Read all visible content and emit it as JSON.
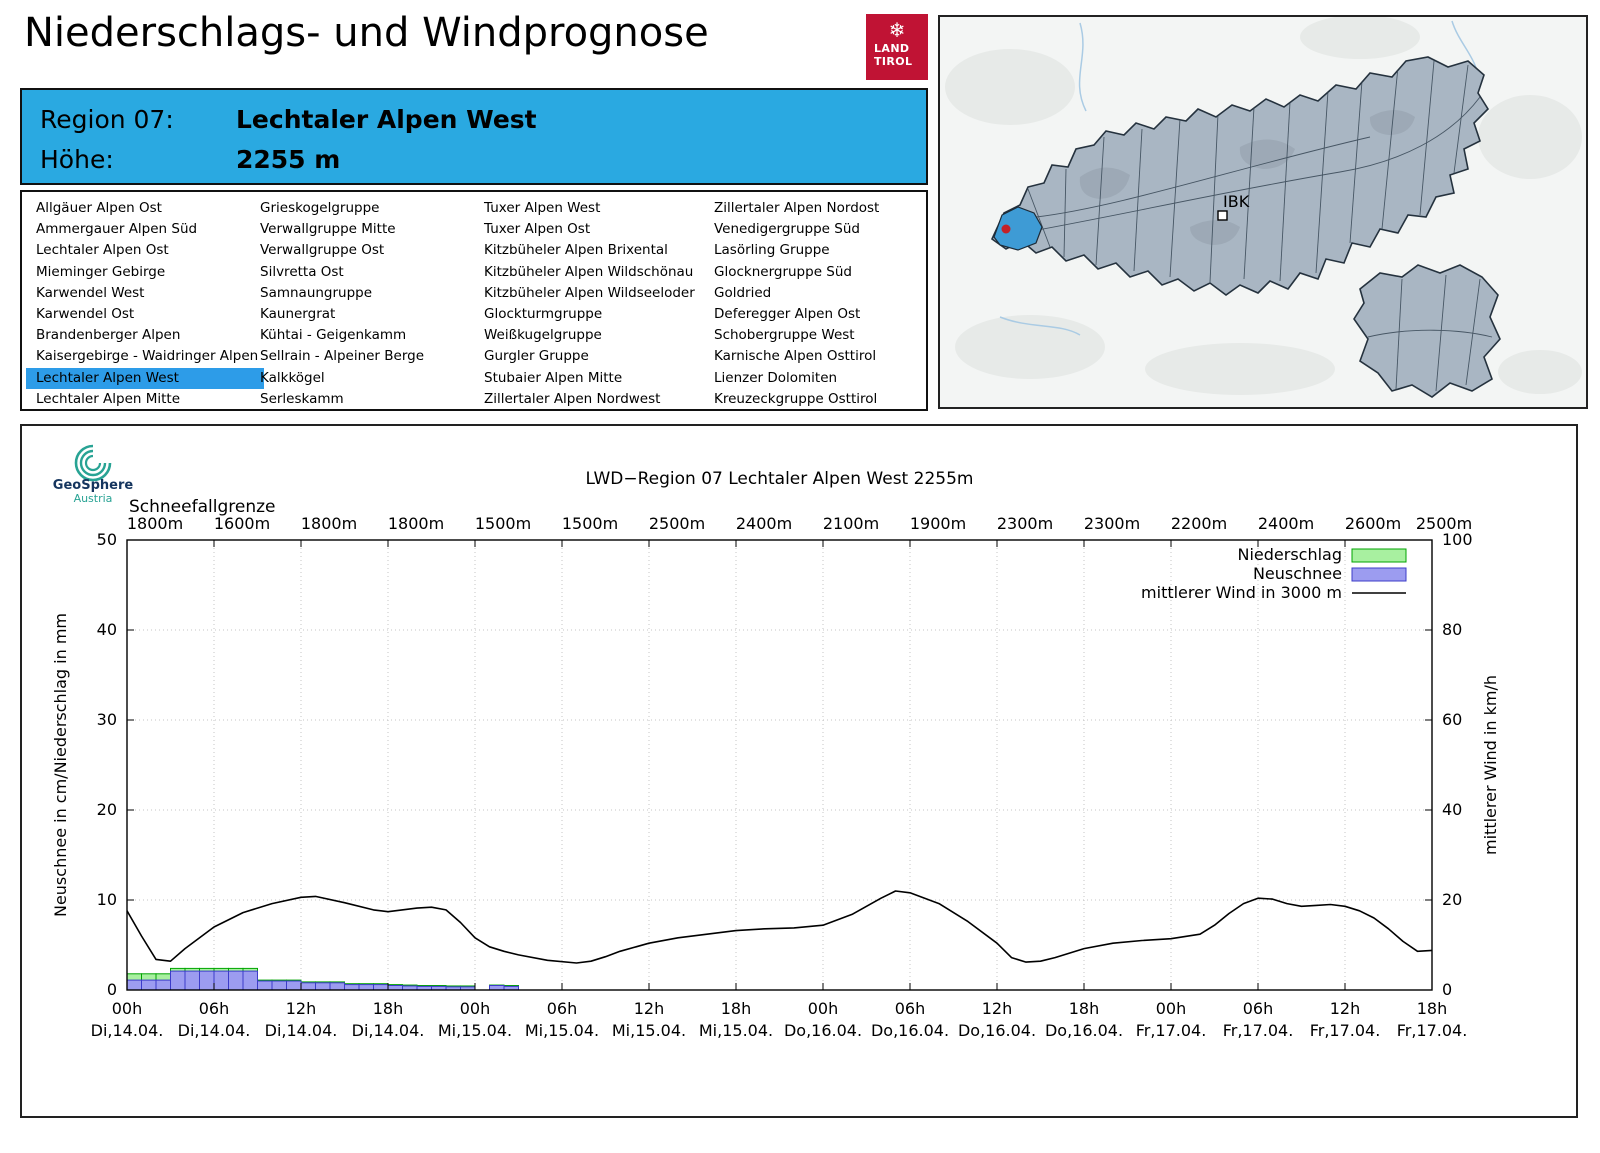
{
  "page": {
    "title": "Niederschlags- und Windprognose"
  },
  "logo": {
    "snowflake_icon": "❄",
    "land": "LAND",
    "tirol": "TIROL"
  },
  "header": {
    "region_label": "Region 07:",
    "region_value": "Lechtaler Alpen West",
    "hoehe_label": "Höhe:",
    "hoehe_value": "2255 m"
  },
  "region_list": {
    "selected": "Lechtaler Alpen West",
    "columns": [
      [
        "Allgäuer Alpen Ost",
        "Ammergauer Alpen Süd",
        "Lechtaler Alpen Ost",
        "Mieminger Gebirge",
        "Karwendel West",
        "Karwendel Ost",
        "Brandenberger Alpen",
        "Kaisergebirge - Waidringer Alpen",
        "Lechtaler Alpen West",
        "Lechtaler Alpen Mitte"
      ],
      [
        "Grieskogelgruppe",
        "Verwallgruppe Mitte",
        "Verwallgruppe Ost",
        "Silvretta Ost",
        "Samnaungruppe",
        "Kaunergrat",
        "Kühtai - Geigenkamm",
        "Sellrain - Alpeiner Berge",
        "Kalkkögel",
        "Serleskamm"
      ],
      [
        "Tuxer Alpen West",
        "Tuxer Alpen Ost",
        "Kitzbüheler Alpen Brixental",
        "Kitzbüheler Alpen Wildschönau",
        "Kitzbüheler Alpen Wildseeloder",
        "Glockturmgruppe",
        "Weißkugelgruppe",
        "Gurgler Gruppe",
        "Stubaier Alpen Mitte",
        "Zillertaler Alpen Nordwest"
      ],
      [
        "Zillertaler Alpen Nordost",
        "Venedigergruppe Süd",
        "Lasörling Gruppe",
        "Glocknergruppe Süd",
        "Goldried",
        "Deferegger Alpen Ost",
        "Schobergruppe West",
        "Karnische Alpen Osttirol",
        "Lienzer Dolomiten",
        "Kreuzeckgruppe Osttirol"
      ]
    ]
  },
  "map": {
    "ibk_label": "IBK"
  },
  "geosphere": {
    "name": "GeoSphere",
    "country": "Austria"
  },
  "chart_data": {
    "type": "combo",
    "title": "LWD−Region 07 Lechtaler Alpen West 2255m",
    "snowline_label": "Schneefallgrenze",
    "snowline_values": [
      "1800m",
      "1600m",
      "1800m",
      "1800m",
      "1500m",
      "1500m",
      "2500m",
      "2400m",
      "2100m",
      "1900m",
      "2300m",
      "2300m",
      "2200m",
      "2400m",
      "2600m",
      "2500m"
    ],
    "xlim": [
      0,
      90
    ],
    "x_ticks": [
      {
        "hour": 0,
        "time": "00h",
        "date": "Di,14.04."
      },
      {
        "hour": 6,
        "time": "06h",
        "date": "Di,14.04."
      },
      {
        "hour": 12,
        "time": "12h",
        "date": "Di,14.04."
      },
      {
        "hour": 18,
        "time": "18h",
        "date": "Di,14.04."
      },
      {
        "hour": 24,
        "time": "00h",
        "date": "Mi,15.04."
      },
      {
        "hour": 30,
        "time": "06h",
        "date": "Mi,15.04."
      },
      {
        "hour": 36,
        "time": "12h",
        "date": "Mi,15.04."
      },
      {
        "hour": 42,
        "time": "18h",
        "date": "Mi,15.04."
      },
      {
        "hour": 48,
        "time": "00h",
        "date": "Do,16.04."
      },
      {
        "hour": 54,
        "time": "06h",
        "date": "Do,16.04."
      },
      {
        "hour": 60,
        "time": "12h",
        "date": "Do,16.04."
      },
      {
        "hour": 66,
        "time": "18h",
        "date": "Do,16.04."
      },
      {
        "hour": 72,
        "time": "00h",
        "date": "Fr,17.04."
      },
      {
        "hour": 78,
        "time": "06h",
        "date": "Fr,17.04."
      },
      {
        "hour": 84,
        "time": "12h",
        "date": "Fr,17.04."
      },
      {
        "hour": 90,
        "time": "18h",
        "date": "Fr,17.04."
      }
    ],
    "ylabel_left": "Neuschnee in cm/Niederschlag in mm",
    "ylabel_right": "mittlerer Wind in km/h",
    "ylim_left": [
      0,
      50
    ],
    "ylim_right": [
      0,
      100
    ],
    "yticks_left": [
      0,
      10,
      20,
      30,
      40,
      50
    ],
    "yticks_right": [
      0,
      20,
      40,
      60,
      80,
      100
    ],
    "grid": true,
    "legend_position": "top-right",
    "legend": [
      {
        "label": "Niederschlag",
        "type": "box",
        "fill": "#a8f0a0",
        "stroke": "#00a400"
      },
      {
        "label": "Neuschnee",
        "type": "box",
        "fill": "#9c9cf0",
        "stroke": "#3c3cc8"
      },
      {
        "label": "mittlerer Wind in 3000 m",
        "type": "line",
        "stroke": "#000000"
      }
    ],
    "bars": {
      "width_hours": 1,
      "niederschlag_mm": [
        [
          0,
          1.8
        ],
        [
          1,
          1.8
        ],
        [
          2,
          1.8
        ],
        [
          3,
          2.4
        ],
        [
          4,
          2.4
        ],
        [
          5,
          2.4
        ],
        [
          6,
          2.4
        ],
        [
          7,
          2.4
        ],
        [
          8,
          2.4
        ],
        [
          9,
          1.1
        ],
        [
          10,
          1.1
        ],
        [
          11,
          1.1
        ],
        [
          12,
          0.9
        ],
        [
          13,
          0.9
        ],
        [
          14,
          0.9
        ],
        [
          15,
          0.7
        ],
        [
          16,
          0.7
        ],
        [
          17,
          0.7
        ],
        [
          18,
          0.6
        ],
        [
          19,
          0.55
        ],
        [
          20,
          0.5
        ],
        [
          21,
          0.5
        ],
        [
          22,
          0.45
        ],
        [
          23,
          0.45
        ],
        [
          25,
          0.55
        ],
        [
          26,
          0.5
        ]
      ],
      "neuschnee_cm": [
        [
          0,
          1.1
        ],
        [
          1,
          1.1
        ],
        [
          2,
          1.1
        ],
        [
          3,
          2.1
        ],
        [
          4,
          2.1
        ],
        [
          5,
          2.1
        ],
        [
          6,
          2.1
        ],
        [
          7,
          2.1
        ],
        [
          8,
          2.1
        ],
        [
          9,
          1.0
        ],
        [
          10,
          1.0
        ],
        [
          11,
          1.0
        ],
        [
          12,
          0.8
        ],
        [
          13,
          0.8
        ],
        [
          14,
          0.8
        ],
        [
          15,
          0.6
        ],
        [
          16,
          0.6
        ],
        [
          17,
          0.6
        ],
        [
          18,
          0.5
        ],
        [
          19,
          0.45
        ],
        [
          20,
          0.4
        ],
        [
          21,
          0.4
        ],
        [
          22,
          0.35
        ],
        [
          23,
          0.35
        ],
        [
          25,
          0.5
        ],
        [
          26,
          0.4
        ]
      ]
    },
    "wind_kmh": [
      [
        0,
        17.6
      ],
      [
        1,
        12
      ],
      [
        2,
        6.8
      ],
      [
        3,
        6.4
      ],
      [
        4,
        9.2
      ],
      [
        6,
        14
      ],
      [
        8,
        17.2
      ],
      [
        10,
        19.2
      ],
      [
        12,
        20.6
      ],
      [
        13,
        20.8
      ],
      [
        15,
        19.4
      ],
      [
        17,
        17.8
      ],
      [
        18,
        17.4
      ],
      [
        20,
        18.2
      ],
      [
        21,
        18.4
      ],
      [
        22,
        17.8
      ],
      [
        23,
        15
      ],
      [
        24,
        11.6
      ],
      [
        25,
        9.6
      ],
      [
        26,
        8.6
      ],
      [
        27,
        7.8
      ],
      [
        29,
        6.6
      ],
      [
        31,
        6
      ],
      [
        32,
        6.4
      ],
      [
        33,
        7.4
      ],
      [
        34,
        8.6
      ],
      [
        36,
        10.4
      ],
      [
        38,
        11.6
      ],
      [
        40,
        12.4
      ],
      [
        42,
        13.2
      ],
      [
        44,
        13.6
      ],
      [
        46,
        13.8
      ],
      [
        48,
        14.4
      ],
      [
        50,
        16.8
      ],
      [
        52,
        20.4
      ],
      [
        53,
        22
      ],
      [
        54,
        21.6
      ],
      [
        56,
        19.2
      ],
      [
        58,
        15.2
      ],
      [
        60,
        10.4
      ],
      [
        61,
        7.2
      ],
      [
        62,
        6.2
      ],
      [
        63,
        6.4
      ],
      [
        64,
        7.2
      ],
      [
        66,
        9.2
      ],
      [
        68,
        10.4
      ],
      [
        70,
        11
      ],
      [
        72,
        11.4
      ],
      [
        74,
        12.4
      ],
      [
        75,
        14.4
      ],
      [
        76,
        17
      ],
      [
        77,
        19.2
      ],
      [
        78,
        20.4
      ],
      [
        79,
        20.2
      ],
      [
        80,
        19.2
      ],
      [
        81,
        18.6
      ],
      [
        82,
        18.8
      ],
      [
        83,
        19
      ],
      [
        84,
        18.6
      ],
      [
        85,
        17.6
      ],
      [
        86,
        16
      ],
      [
        87,
        13.6
      ],
      [
        88,
        10.8
      ],
      [
        89,
        8.6
      ],
      [
        90,
        8.8
      ]
    ]
  }
}
